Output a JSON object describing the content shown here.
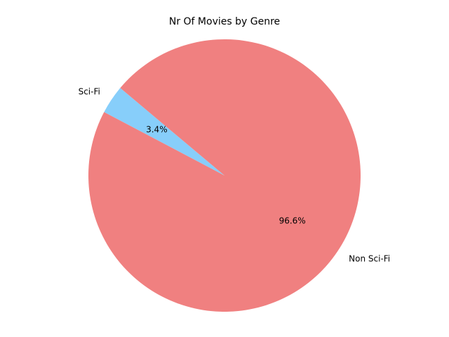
{
  "chart_data": {
    "type": "pie",
    "title": "Nr Of Movies by Genre",
    "slices": [
      {
        "label": "Sci-Fi",
        "value": 3.4,
        "pct_label": "3.4%",
        "color": "#87CEFA"
      },
      {
        "label": "Non Sci-Fi",
        "value": 96.6,
        "pct_label": "96.6%",
        "color": "#F08080"
      }
    ],
    "legend": "none"
  }
}
